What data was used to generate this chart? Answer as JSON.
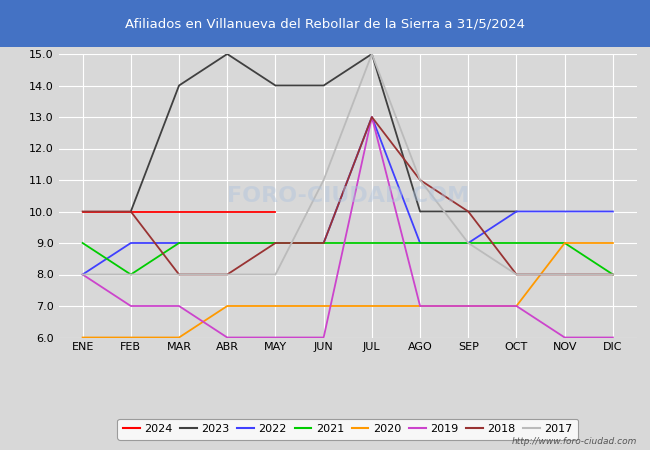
{
  "title": "Afiliados en Villanueva del Rebollar de la Sierra a 31/5/2024",
  "title_bg_color": "#4472c4",
  "title_text_color": "white",
  "months": [
    "ENE",
    "FEB",
    "MAR",
    "ABR",
    "MAY",
    "JUN",
    "JUL",
    "AGO",
    "SEP",
    "OCT",
    "NOV",
    "DIC"
  ],
  "ylim": [
    6.0,
    15.0
  ],
  "yticks": [
    6.0,
    7.0,
    8.0,
    9.0,
    10.0,
    11.0,
    12.0,
    13.0,
    14.0,
    15.0
  ],
  "series": {
    "2024": {
      "color": "#ff0000",
      "data": [
        10,
        10,
        10,
        10,
        10,
        null,
        null,
        null,
        null,
        null,
        null,
        null
      ]
    },
    "2023": {
      "color": "#404040",
      "data": [
        null,
        10,
        14,
        15,
        14,
        14,
        15,
        10,
        10,
        10,
        null,
        null
      ]
    },
    "2022": {
      "color": "#4040ff",
      "data": [
        8,
        9,
        9,
        9,
        9,
        9,
        13,
        9,
        9,
        10,
        10,
        10
      ]
    },
    "2021": {
      "color": "#00cc00",
      "data": [
        9,
        8,
        9,
        9,
        9,
        9,
        9,
        9,
        9,
        9,
        9,
        8
      ]
    },
    "2020": {
      "color": "#ff9900",
      "data": [
        6,
        6,
        6,
        7,
        7,
        7,
        7,
        7,
        7,
        7,
        9,
        9
      ]
    },
    "2019": {
      "color": "#cc44cc",
      "data": [
        8,
        7,
        7,
        6,
        6,
        6,
        13,
        7,
        7,
        7,
        6,
        6
      ]
    },
    "2018": {
      "color": "#993333",
      "data": [
        10,
        10,
        8,
        8,
        9,
        9,
        13,
        11,
        10,
        8,
        8,
        8
      ]
    },
    "2017": {
      "color": "#bbbbbb",
      "data": [
        8,
        8,
        8,
        8,
        8,
        11,
        15,
        11,
        9,
        8,
        8,
        8
      ]
    }
  },
  "background_color": "#d8d8d8",
  "plot_bg_color": "#d8d8d8",
  "grid_color": "white",
  "url_text": "http://www.foro-ciudad.com",
  "legend_order": [
    "2024",
    "2023",
    "2022",
    "2021",
    "2020",
    "2019",
    "2018",
    "2017"
  ]
}
